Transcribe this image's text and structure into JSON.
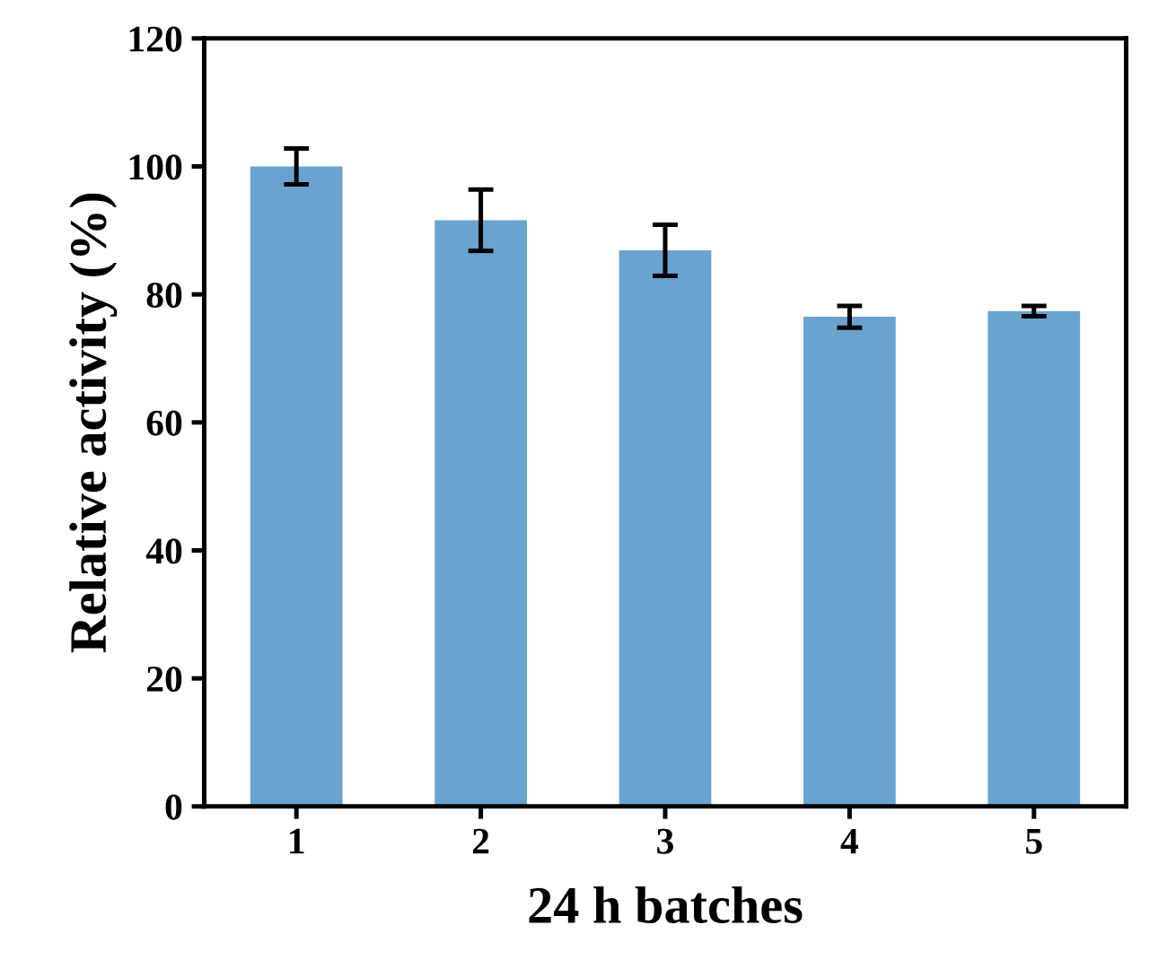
{
  "chart_data": {
    "type": "bar",
    "xlabel": "24 h batches",
    "ylabel": "Relative activity (%)",
    "categories": [
      "1",
      "2",
      "3",
      "4",
      "5"
    ],
    "values": [
      100,
      91.6,
      86.9,
      76.5,
      77.4
    ],
    "errors": [
      2.8,
      4.8,
      4.0,
      1.7,
      0.8
    ],
    "color": "#6aa3cf",
    "ylim": [
      0,
      120
    ],
    "yticks": [
      0,
      20,
      40,
      60,
      80,
      100,
      120
    ],
    "grid": false
  }
}
